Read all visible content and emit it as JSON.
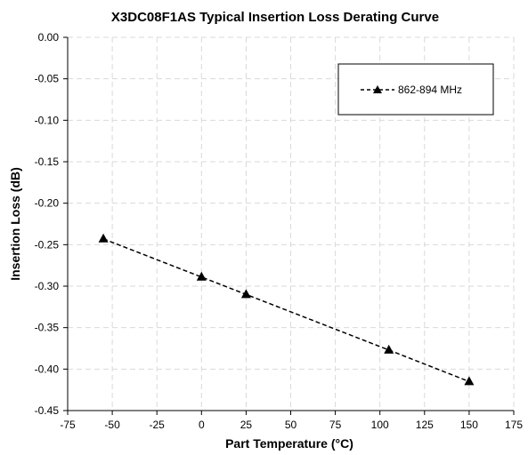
{
  "chart_data": {
    "type": "line",
    "title": "X3DC08F1AS Typical Insertion Loss Derating Curve",
    "xlabel": "Part Temperature (°C)",
    "ylabel": "Insertion Loss (dB)",
    "xlim": [
      -75,
      175
    ],
    "ylim": [
      -0.45,
      0.0
    ],
    "xticks": [
      -75,
      -50,
      -25,
      0,
      25,
      50,
      75,
      100,
      125,
      150,
      175
    ],
    "yticks": [
      0.0,
      -0.05,
      -0.1,
      -0.15,
      -0.2,
      -0.25,
      -0.3,
      -0.35,
      -0.4,
      -0.45
    ],
    "xtick_labels": [
      "-75",
      "-50",
      "-25",
      "0",
      "25",
      "50",
      "75",
      "100",
      "125",
      "150",
      "175"
    ],
    "ytick_labels": [
      "0.00",
      "-0.05",
      "-0.10",
      "-0.15",
      "-0.20",
      "-0.25",
      "-0.30",
      "-0.35",
      "-0.40",
      "-0.45"
    ],
    "grid": true,
    "legend_position": "top-right",
    "series": [
      {
        "name": "862-894 MHz",
        "marker": "triangle",
        "line_style": "dashed",
        "color": "#000000",
        "x": [
          -55,
          0,
          25,
          105,
          150
        ],
        "y": [
          -0.243,
          -0.289,
          -0.31,
          -0.377,
          -0.415
        ]
      }
    ]
  }
}
